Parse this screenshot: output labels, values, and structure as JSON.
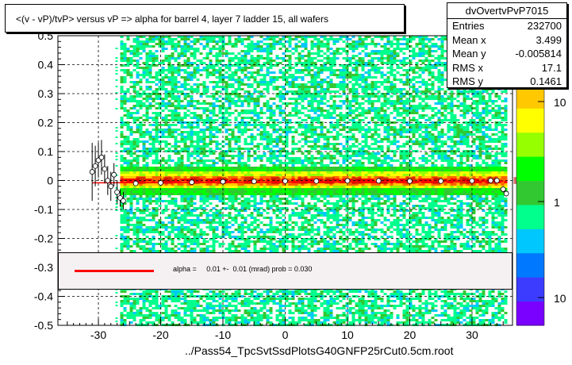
{
  "title": "<(v - vP)/tvP> versus   vP => alpha for barrel 4, layer 7 ladder 15, all wafers",
  "footer": "../Pass54_TpcSvtSsdPlotsG40GNFP25rCut0.5cm.root",
  "stats": {
    "name": "dvOvertvPvP7015",
    "rows": [
      {
        "label": "Entries",
        "value": "232700"
      },
      {
        "label": "Mean x",
        "value": "3.499"
      },
      {
        "label": "Mean y",
        "value": "-0.005814"
      },
      {
        "label": "RMS x",
        "value": "17.1"
      },
      {
        "label": "RMS y",
        "value": "0.1461"
      }
    ]
  },
  "fit": {
    "text": "alpha =     0.01 +-  0.01 (mrad) prob = 0.030",
    "line_color": "#ff0000"
  },
  "chart_data": {
    "type": "heatmap",
    "title": "<(v - vP)/tvP> versus   vP => alpha for barrel 4, layer 7 ladder 15, all wafers",
    "xlabel": "",
    "ylabel": "",
    "xlim": [
      -36.5,
      36.5
    ],
    "ylim": [
      -0.5,
      0.5
    ],
    "x_ticks": [
      "-30",
      "-20",
      "-10",
      "0",
      "10",
      "20",
      "30"
    ],
    "y_ticks": [
      "-0.5",
      "-0.4",
      "-0.3",
      "-0.2",
      "-0.1",
      "0",
      "0.1",
      "0.2",
      "0.3",
      "0.4",
      "0.5"
    ],
    "x_tick_values": [
      -30,
      -20,
      -10,
      0,
      10,
      20,
      30
    ],
    "y_tick_values": [
      -0.5,
      -0.4,
      -0.3,
      -0.2,
      -0.1,
      0,
      0.1,
      0.2,
      0.3,
      0.4,
      0.5
    ],
    "grid": true,
    "palette_ticks": [
      "10",
      "1",
      "10"
    ],
    "palette_colors": [
      "#7a00ff",
      "#3c3cff",
      "#0078ff",
      "#00c8ff",
      "#00ff8c",
      "#32c832",
      "#00ff00",
      "#96ff00",
      "#ffff00",
      "#ffc800",
      "#ff6400",
      "#ff0000"
    ],
    "density_x_range": [
      -26.5,
      35.5
    ],
    "profile_points": [
      {
        "x": -31.0,
        "y": 0.03,
        "err": 0.1
      },
      {
        "x": -30.5,
        "y": 0.05,
        "err": 0.07
      },
      {
        "x": -30.0,
        "y": 0.07,
        "err": 0.06
      },
      {
        "x": -29.5,
        "y": 0.08,
        "err": 0.06
      },
      {
        "x": -29.0,
        "y": 0.04,
        "err": 0.05
      },
      {
        "x": -28.5,
        "y": 0.0,
        "err": 0.05
      },
      {
        "x": -28.0,
        "y": -0.02,
        "err": 0.05
      },
      {
        "x": -27.5,
        "y": 0.02,
        "err": 0.04
      },
      {
        "x": -27.0,
        "y": -0.04,
        "err": 0.04
      },
      {
        "x": -26.5,
        "y": -0.06,
        "err": 0.03
      },
      {
        "x": -26.0,
        "y": -0.07,
        "err": 0.03
      },
      {
        "x": -24.0,
        "y": -0.01,
        "err": 0.005
      },
      {
        "x": -20.0,
        "y": -0.008,
        "err": 0.005
      },
      {
        "x": -15.0,
        "y": -0.006,
        "err": 0.005
      },
      {
        "x": -10.0,
        "y": -0.004,
        "err": 0.005
      },
      {
        "x": -5.0,
        "y": -0.003,
        "err": 0.005
      },
      {
        "x": 0.0,
        "y": -0.002,
        "err": 0.005
      },
      {
        "x": 5.0,
        "y": -0.002,
        "err": 0.005
      },
      {
        "x": 10.0,
        "y": -0.001,
        "err": 0.005
      },
      {
        "x": 15.0,
        "y": -0.001,
        "err": 0.005
      },
      {
        "x": 20.0,
        "y": -0.002,
        "err": 0.005
      },
      {
        "x": 25.0,
        "y": -0.002,
        "err": 0.005
      },
      {
        "x": 30.0,
        "y": -0.001,
        "err": 0.005
      },
      {
        "x": 33.0,
        "y": 0.0,
        "err": 0.006
      },
      {
        "x": 34.0,
        "y": 0.0,
        "err": 0.008
      },
      {
        "x": 35.0,
        "y": -0.03,
        "err": 0.01
      },
      {
        "x": 35.5,
        "y": -0.045,
        "err": 0.01
      }
    ],
    "fit_line": {
      "x": [
        -31,
        35
      ],
      "y": [
        -0.008,
        -0.002
      ],
      "color": "#ff0000"
    }
  }
}
